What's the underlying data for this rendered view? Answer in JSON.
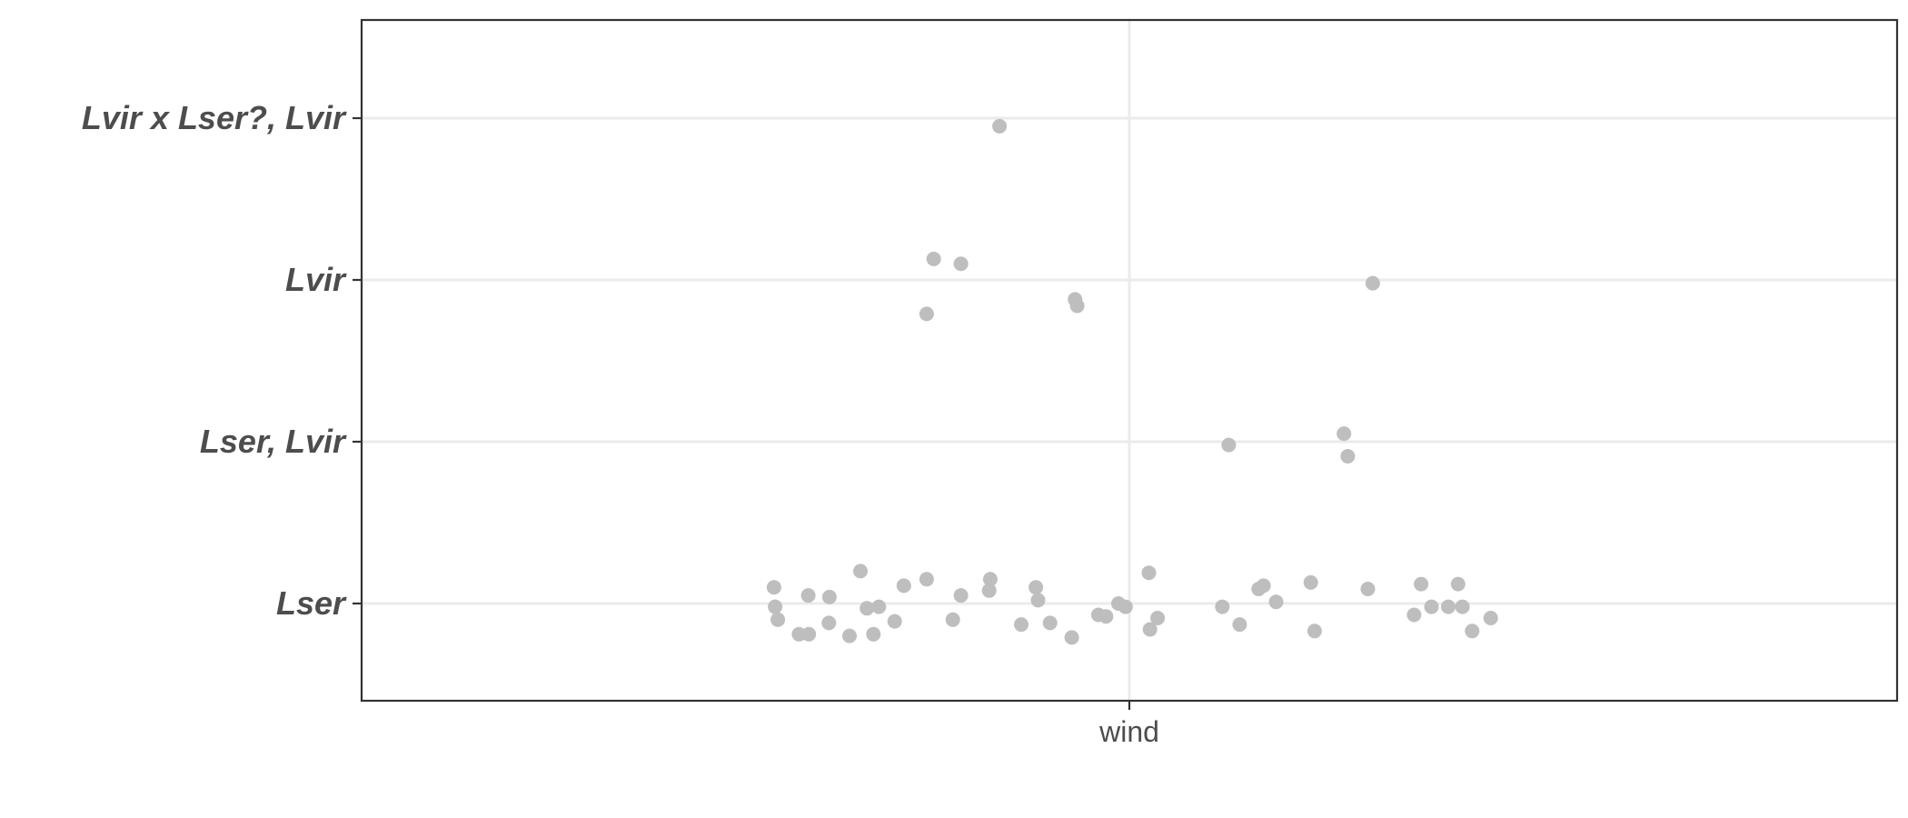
{
  "chart_data": {
    "type": "scatter",
    "title": "",
    "xlabel": "",
    "ylabel": "",
    "x_categories": [
      "wind"
    ],
    "y_categories": [
      "Lser",
      "Lser, Lvir",
      "Lvir",
      "Lvir x Lser?, Lvir"
    ],
    "grid": true,
    "legend": "none",
    "point_color": "#bebebe",
    "points": [
      {
        "x": -0.654,
        "y": 0.1
      },
      {
        "x": -0.652,
        "y": -0.02
      },
      {
        "x": -0.647,
        "y": -0.1
      },
      {
        "x": -0.608,
        "y": -0.19
      },
      {
        "x": -0.59,
        "y": -0.19
      },
      {
        "x": -0.591,
        "y": 0.05
      },
      {
        "x": -0.553,
        "y": -0.12
      },
      {
        "x": -0.552,
        "y": 0.04
      },
      {
        "x": -0.515,
        "y": -0.2
      },
      {
        "x": -0.495,
        "y": 0.2
      },
      {
        "x": -0.483,
        "y": -0.03
      },
      {
        "x": -0.471,
        "y": -0.19
      },
      {
        "x": -0.461,
        "y": -0.02
      },
      {
        "x": -0.432,
        "y": -0.11
      },
      {
        "x": -0.415,
        "y": 0.11
      },
      {
        "x": -0.373,
        "y": 0.15
      },
      {
        "x": -0.325,
        "y": -0.1
      },
      {
        "x": -0.31,
        "y": 0.05
      },
      {
        "x": -0.258,
        "y": 0.08
      },
      {
        "x": -0.256,
        "y": 0.15
      },
      {
        "x": -0.199,
        "y": -0.13
      },
      {
        "x": -0.172,
        "y": 0.1
      },
      {
        "x": -0.168,
        "y": 0.02
      },
      {
        "x": -0.146,
        "y": -0.12
      },
      {
        "x": -0.106,
        "y": -0.21
      },
      {
        "x": -0.057,
        "y": -0.07
      },
      {
        "x": -0.043,
        "y": -0.08
      },
      {
        "x": -0.02,
        "y": 0.0
      },
      {
        "x": -0.007,
        "y": -0.02
      },
      {
        "x": 0.036,
        "y": 0.19
      },
      {
        "x": 0.038,
        "y": -0.16
      },
      {
        "x": 0.052,
        "y": -0.09
      },
      {
        "x": 0.171,
        "y": -0.02
      },
      {
        "x": 0.203,
        "y": -0.13
      },
      {
        "x": 0.238,
        "y": 0.09
      },
      {
        "x": 0.247,
        "y": 0.11
      },
      {
        "x": 0.27,
        "y": 0.01
      },
      {
        "x": 0.334,
        "y": 0.13
      },
      {
        "x": 0.341,
        "y": -0.17
      },
      {
        "x": 0.439,
        "y": 0.09
      },
      {
        "x": 0.524,
        "y": -0.07
      },
      {
        "x": 0.537,
        "y": 0.12
      },
      {
        "x": 0.556,
        "y": -0.02
      },
      {
        "x": 0.587,
        "y": -0.02
      },
      {
        "x": 0.605,
        "y": 0.12
      },
      {
        "x": 0.613,
        "y": -0.02
      },
      {
        "x": 0.631,
        "y": -0.17
      },
      {
        "x": 0.665,
        "y": -0.09
      },
      {
        "x": 0.183,
        "y": 0.98
      },
      {
        "x": 0.395,
        "y": 1.05
      },
      {
        "x": 0.402,
        "y": 0.91
      },
      {
        "x": -0.373,
        "y": 1.79
      },
      {
        "x": -0.36,
        "y": 2.13
      },
      {
        "x": -0.31,
        "y": 2.1
      },
      {
        "x": -0.1,
        "y": 1.88
      },
      {
        "x": -0.096,
        "y": 1.84
      },
      {
        "x": 0.448,
        "y": 1.98
      },
      {
        "x": -0.239,
        "y": 2.95
      }
    ]
  }
}
